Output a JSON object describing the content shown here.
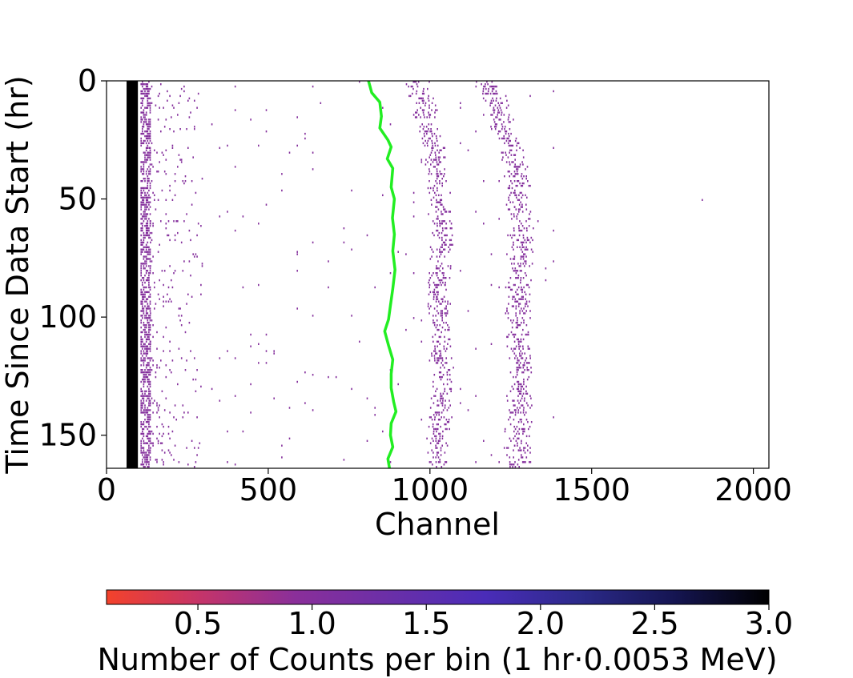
{
  "chart_data": {
    "type": "heatmap",
    "title": "",
    "xlabel": "Channel",
    "ylabel": "Time Since Data Start (hr)",
    "xlim": [
      0,
      2048
    ],
    "ylim": [
      164,
      0
    ],
    "y_inverted": true,
    "x_ticks": [
      0,
      500,
      1000,
      1500,
      2000
    ],
    "x_tick_labels": [
      "0",
      "500",
      "1000",
      "1500",
      "2000"
    ],
    "y_ticks": [
      0,
      50,
      100,
      150
    ],
    "y_tick_labels": [
      "0",
      "50",
      "100",
      "150"
    ],
    "grid": false,
    "colorbar": {
      "label": "Number of Counts per bin (1 hr·0.0053 MeV)",
      "range": [
        0.1,
        3.0
      ],
      "ticks": [
        0.5,
        1.0,
        1.5,
        2.0,
        2.5,
        3.0
      ],
      "tick_labels": [
        "0.5",
        "1.0",
        "1.5",
        "2.0",
        "2.5",
        "3.0"
      ],
      "orientation": "horizontal",
      "placement": "bottom",
      "colors": [
        "#f4422b",
        "#c4346a",
        "#8a2f9a",
        "#6a2fa8",
        "#4a2cb8",
        "#2c2a8a",
        "#151552",
        "#000000"
      ]
    },
    "bins": {
      "hours": 164,
      "channel_width": 4
    },
    "dense_band": {
      "channel_range": [
        70,
        105
      ],
      "time_range": [
        0,
        164
      ],
      "value": 3.0
    },
    "peaks": [
      {
        "center_channel_at_start": 960,
        "center_channel_range": [
          955,
          1030
        ],
        "width_channels": 40,
        "density": 0.35
      },
      {
        "center_channel_at_start": 1180,
        "center_channel_range": [
          1175,
          1275
        ],
        "width_channels": 45,
        "density": 0.35
      }
    ],
    "background_density": 0.02,
    "marker_count_value": 1.0,
    "tracking_line": {
      "color": "#22ee22",
      "points": [
        [
          810,
          0
        ],
        [
          820,
          5
        ],
        [
          845,
          9
        ],
        [
          850,
          15
        ],
        [
          845,
          20
        ],
        [
          870,
          25
        ],
        [
          880,
          28
        ],
        [
          868,
          33
        ],
        [
          885,
          37
        ],
        [
          880,
          45
        ],
        [
          890,
          50
        ],
        [
          884,
          58
        ],
        [
          890,
          65
        ],
        [
          885,
          72
        ],
        [
          892,
          80
        ],
        [
          885,
          88
        ],
        [
          878,
          95
        ],
        [
          872,
          101
        ],
        [
          860,
          106
        ],
        [
          872,
          112
        ],
        [
          885,
          118
        ],
        [
          880,
          124
        ],
        [
          880,
          130
        ],
        [
          888,
          136
        ],
        [
          895,
          140
        ],
        [
          880,
          145
        ],
        [
          878,
          150
        ],
        [
          885,
          155
        ],
        [
          870,
          160
        ],
        [
          875,
          164
        ]
      ]
    }
  }
}
